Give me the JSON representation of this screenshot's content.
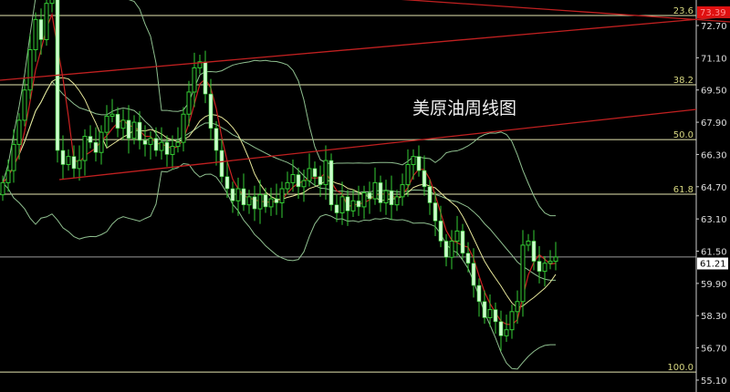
{
  "chart_data": {
    "type": "candlestick",
    "title": "美原油周线图",
    "y_ticks": [
      "72.70",
      "71.10",
      "69.50",
      "67.90",
      "66.30",
      "64.70",
      "63.10",
      "61.50",
      "59.90",
      "58.30",
      "56.70",
      "55.10"
    ],
    "ylim": [
      55.1,
      73.6
    ],
    "current_price": "61.21",
    "top_price_tag": "73.39",
    "fib_levels": [
      {
        "label": "23.6",
        "price": 73.2
      },
      {
        "label": "38.2",
        "price": 69.76
      },
      {
        "label": "50.0",
        "price": 67.04
      },
      {
        "label": "61.8",
        "price": 64.33
      },
      {
        "label": "100.0",
        "price": 55.5
      }
    ],
    "closes": [
      64.9,
      65.5,
      66.8,
      68.0,
      69.5,
      71.5,
      73.0,
      72.0,
      73.8,
      74.2,
      66.5,
      65.8,
      66.2,
      65.6,
      66.0,
      67.2,
      66.9,
      66.4,
      67.4,
      68.2,
      68.3,
      67.6,
      68.0,
      67.1,
      67.9,
      67.0,
      66.8,
      67.1,
      66.5,
      66.9,
      66.3,
      66.7,
      66.9,
      68.3,
      69.4,
      70.6,
      70.9,
      69.3,
      67.6,
      66.5,
      65.2,
      64.6,
      64.0,
      64.6,
      63.8,
      64.2,
      63.6,
      64.3,
      63.7,
      64.1,
      63.9,
      64.6,
      64.9,
      65.3,
      64.7,
      65.0,
      65.6,
      65.2,
      64.8,
      66.0,
      63.8,
      63.4,
      64.2,
      63.5,
      64.0,
      63.7,
      64.4,
      64.1,
      64.9,
      63.9,
      64.5,
      63.8,
      64.2,
      64.8,
      65.8,
      66.2,
      65.5,
      64.7,
      63.9,
      63.0,
      62.0,
      61.2,
      62.0,
      62.5,
      61.4,
      60.9,
      59.8,
      59.0,
      58.2,
      58.6,
      58.0,
      57.3,
      57.6,
      58.5,
      59.0,
      61.8,
      62.0,
      61.0,
      60.5,
      60.9,
      61.0,
      61.21
    ],
    "colors": {
      "up": "#33cc33",
      "down": "#ccffcc",
      "ma_short": "#cc2222",
      "ma_long": "#e6e699",
      "bands": "#8fbf8f",
      "fib": "#e6e6b0",
      "trend": "#c02020"
    }
  }
}
